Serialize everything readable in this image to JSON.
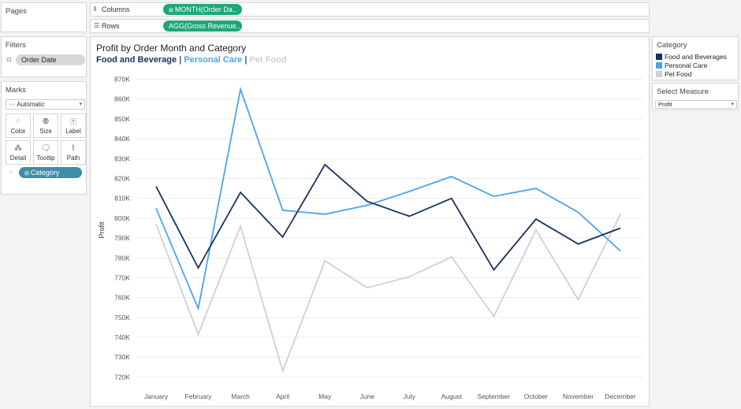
{
  "pages": {
    "title": "Pages"
  },
  "filters": {
    "title": "Filters",
    "pill": "Order Date"
  },
  "marks": {
    "title": "Marks",
    "mark_type": "Automatic",
    "buttons": {
      "color": "Color",
      "size": "Size",
      "label": "Label",
      "detail": "Detail",
      "tooltip": "Tooltip",
      "path": "Path"
    },
    "pill": "Category"
  },
  "shelves": {
    "columns_label": "Columns",
    "columns_pill": "MONTH(Order Da..",
    "rows_label": "Rows",
    "rows_pill": "AGG(Gross Revenue.."
  },
  "legend": {
    "title": "Category",
    "items": [
      {
        "label": "Food and Beverages",
        "color": "#16325c"
      },
      {
        "label": "Personal Care",
        "color": "#4da3ec"
      },
      {
        "label": "Pet Food",
        "color": "#cfcfdb"
      }
    ]
  },
  "parameter": {
    "title": "Select Measure",
    "value": "Profit"
  },
  "chart_data": {
    "type": "line",
    "title": "Profit by Order Month and Category",
    "subtitle": {
      "parts": [
        {
          "text": "Food and Beverage",
          "color": "#16325c"
        },
        {
          "text": " | ",
          "color": "#555555"
        },
        {
          "text": "Personal Care",
          "color": "#4da3ec"
        },
        {
          "text": " | ",
          "color": "#555555"
        },
        {
          "text": "Pet Food",
          "color": "#cfcfdb"
        }
      ]
    },
    "xlabel": "",
    "ylabel": "Profit",
    "ylim": [
      715000,
      873000
    ],
    "grid": "horizontal",
    "yticks": [
      720000,
      730000,
      740000,
      750000,
      760000,
      770000,
      780000,
      790000,
      800000,
      810000,
      820000,
      830000,
      840000,
      850000,
      860000,
      870000
    ],
    "ytick_labels": [
      "720K",
      "730K",
      "740K",
      "750K",
      "760K",
      "770K",
      "780K",
      "790K",
      "800K",
      "810K",
      "820K",
      "830K",
      "840K",
      "850K",
      "860K",
      "870K"
    ],
    "categories": [
      "January",
      "February",
      "March",
      "April",
      "May",
      "June",
      "July",
      "August",
      "September",
      "October",
      "November",
      "December"
    ],
    "series": [
      {
        "name": "Food and Beverages",
        "color": "#16325c",
        "values": [
          816000,
          775000,
          813000,
          790500,
          827000,
          808500,
          801000,
          810000,
          774000,
          799500,
          787000,
          795000
        ]
      },
      {
        "name": "Personal Care",
        "color": "#4da3ec",
        "values": [
          805000,
          754500,
          865000,
          804000,
          802000,
          806500,
          813500,
          821000,
          811000,
          815000,
          803000,
          783500
        ]
      },
      {
        "name": "Pet Food",
        "color": "#cfcfdb",
        "values": [
          797000,
          741500,
          796000,
          723000,
          778500,
          765000,
          770500,
          780500,
          750500,
          794000,
          759000,
          802000
        ]
      }
    ]
  }
}
